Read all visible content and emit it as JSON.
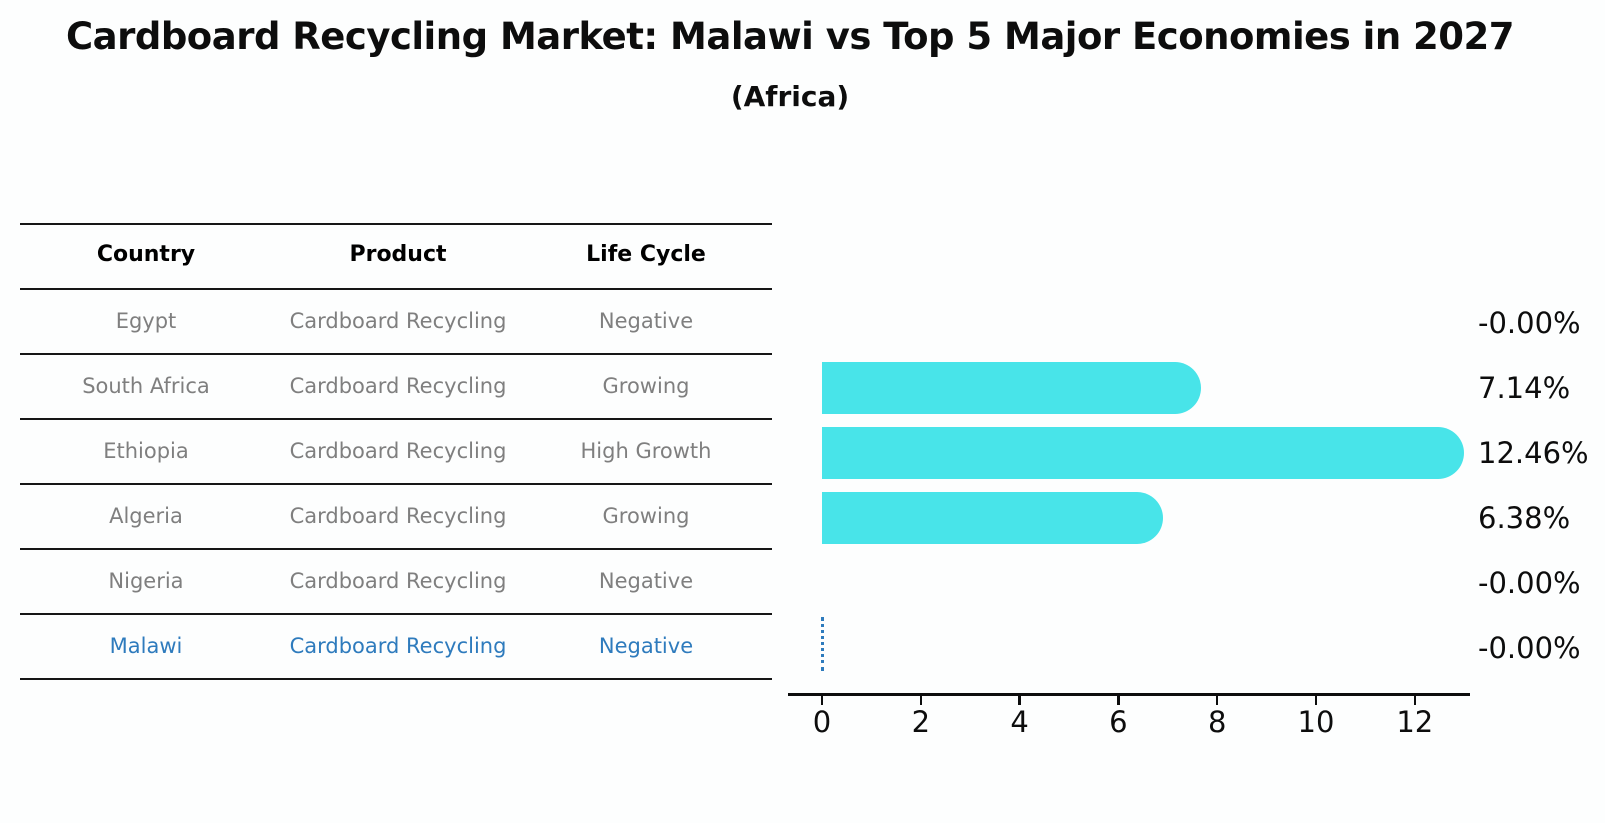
{
  "title": "Cardboard Recycling Market: Malawi vs Top 5 Major Economies in 2027",
  "subtitle": "(Africa)",
  "table": {
    "headers": [
      "Country",
      "Product",
      "Life Cycle"
    ],
    "rows": [
      {
        "country": "Egypt",
        "product": "Cardboard Recycling",
        "life_cycle": "Negative",
        "highlight": false
      },
      {
        "country": "South Africa",
        "product": "Cardboard Recycling",
        "life_cycle": "Growing",
        "highlight": false
      },
      {
        "country": "Ethiopia",
        "product": "Cardboard Recycling",
        "life_cycle": "High Growth",
        "highlight": false
      },
      {
        "country": "Algeria",
        "product": "Cardboard Recycling",
        "life_cycle": "Growing",
        "highlight": false
      },
      {
        "country": "Nigeria",
        "product": "Cardboard Recycling",
        "life_cycle": "Negative",
        "highlight": false
      },
      {
        "country": "Malawi",
        "product": "Cardboard Recycling",
        "life_cycle": "Negative",
        "highlight": true
      }
    ]
  },
  "chart_data": {
    "type": "bar",
    "orientation": "horizontal",
    "title": "Cardboard Recycling Market: Malawi vs Top 5 Major Economies in 2027 (Africa)",
    "categories": [
      "Egypt",
      "South Africa",
      "Ethiopia",
      "Algeria",
      "Nigeria",
      "Malawi"
    ],
    "values": [
      -0.0,
      7.14,
      12.46,
      6.38,
      -0.0,
      -0.0
    ],
    "value_labels": [
      "-0.00%",
      "7.14%",
      "12.46%",
      "6.38%",
      "-0.00%",
      "-0.00%"
    ],
    "x_ticks": [
      0,
      2,
      4,
      6,
      8,
      10,
      12
    ],
    "xlim": [
      0,
      13.2
    ],
    "xlabel": "",
    "ylabel": "",
    "grid": false,
    "legend": false,
    "highlight_category": "Malawi",
    "highlight_marker": "dotted zero line"
  },
  "colors": {
    "bar": "#48e4e9",
    "highlight": "#2e7bbd",
    "table_text": "#7f7f7f",
    "heading_text": "#000000",
    "axis": "#0d0d0d"
  }
}
